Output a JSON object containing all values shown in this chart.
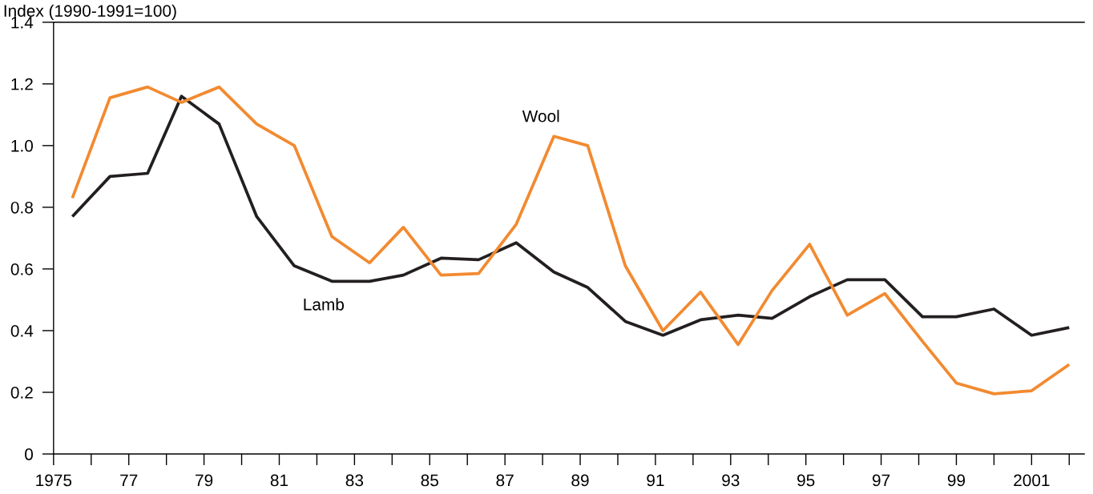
{
  "chart_data": {
    "type": "line",
    "ylabel": "Index (1990-1991=100)",
    "x": [
      1975.5,
      1976.5,
      1977.5,
      1978.4,
      1979.4,
      1980.4,
      1981.4,
      1982.4,
      1983.4,
      1984.3,
      1985.3,
      1986.3,
      1987.3,
      1988.3,
      1989.2,
      1990.2,
      1991.2,
      1992.2,
      1993.2,
      1994.1,
      1995.1,
      1996.1,
      1997.1,
      1998.1,
      1999.0,
      2000.0,
      2001.0,
      2002.0
    ],
    "series": [
      {
        "color": "#231f20",
        "values": [
          0.77,
          0.9,
          0.91,
          1.16,
          1.07,
          0.77,
          0.61,
          0.56,
          0.56,
          0.58,
          0.635,
          0.63,
          0.685,
          0.59,
          0.54,
          0.43,
          0.385,
          0.435,
          0.45,
          0.44,
          0.51,
          0.565,
          0.565,
          0.445,
          0.445,
          0.47,
          0.385,
          0.41
        ]
      },
      {
        "color": "#f28a30",
        "values": [
          0.83,
          1.155,
          1.19,
          1.14,
          1.19,
          1.07,
          1.0,
          0.705,
          0.62,
          0.735,
          0.58,
          0.585,
          0.745,
          1.03,
          1.0,
          0.61,
          0.4,
          0.525,
          0.355,
          0.53,
          0.68,
          0.45,
          0.52,
          0.365,
          0.23,
          0.195,
          0.205,
          0.29
        ]
      }
    ],
    "annotations": [
      "Lamb",
      "Wool"
    ],
    "xlim": [
      1975,
      2002.4
    ],
    "ylim": [
      0,
      1.4
    ],
    "xticks": [
      {
        "value": 1975,
        "label": "1975"
      },
      {
        "value": 1976,
        "label": null
      },
      {
        "value": 1977,
        "label": "77"
      },
      {
        "value": 1978,
        "label": null
      },
      {
        "value": 1979,
        "label": "79"
      },
      {
        "value": 1980,
        "label": null
      },
      {
        "value": 1981,
        "label": "81"
      },
      {
        "value": 1982,
        "label": null
      },
      {
        "value": 1983,
        "label": "83"
      },
      {
        "value": 1984,
        "label": null
      },
      {
        "value": 1985,
        "label": "85"
      },
      {
        "value": 1986,
        "label": null
      },
      {
        "value": 1987,
        "label": "87"
      },
      {
        "value": 1988,
        "label": null
      },
      {
        "value": 1989,
        "label": "89"
      },
      {
        "value": 1990,
        "label": null
      },
      {
        "value": 1991,
        "label": "91"
      },
      {
        "value": 1992,
        "label": null
      },
      {
        "value": 1993,
        "label": "93"
      },
      {
        "value": 1994,
        "label": null
      },
      {
        "value": 1995,
        "label": "95"
      },
      {
        "value": 1996,
        "label": null
      },
      {
        "value": 1997,
        "label": "97"
      },
      {
        "value": 1998,
        "label": null
      },
      {
        "value": 1999,
        "label": "99"
      },
      {
        "value": 2000,
        "label": null
      },
      {
        "value": 2001,
        "label": "2001"
      },
      {
        "value": 2002,
        "label": null
      }
    ],
    "yticks": [
      {
        "value": 0,
        "label": "0"
      },
      {
        "value": 0.2,
        "label": "0.2"
      },
      {
        "value": 0.4,
        "label": "0.4"
      },
      {
        "value": 0.6,
        "label": "0.6"
      },
      {
        "value": 0.8,
        "label": "0.8"
      },
      {
        "value": 1.0,
        "label": "1.0"
      },
      {
        "value": 1.2,
        "label": "1.2"
      },
      {
        "value": 1.4,
        "label": "1.4"
      }
    ],
    "grid": false,
    "legend": false
  }
}
